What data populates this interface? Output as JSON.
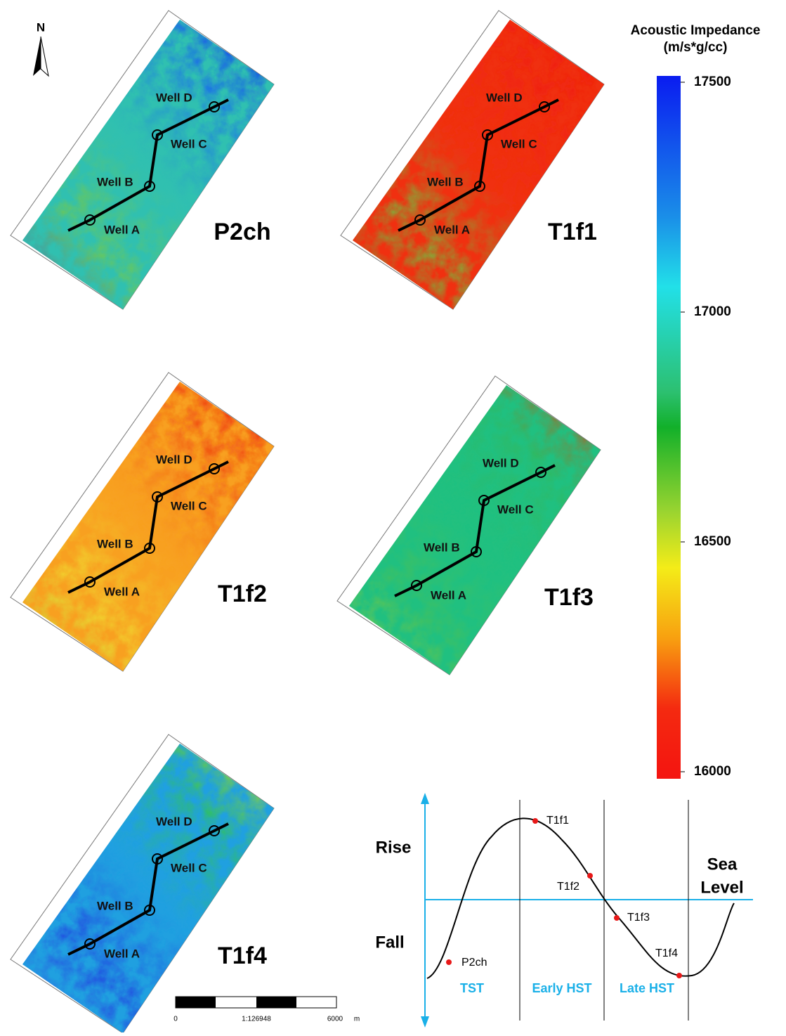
{
  "north": "N",
  "maps": [
    {
      "name": "P2ch",
      "wells": [
        "Well A",
        "Well B",
        "Well C",
        "Well D"
      ]
    },
    {
      "name": "T1f1",
      "wells": [
        "Well A",
        "Well B",
        "Well C",
        "Well D"
      ]
    },
    {
      "name": "T1f2",
      "wells": [
        "Well A",
        "Well B",
        "Well C",
        "Well D"
      ]
    },
    {
      "name": "T1f3",
      "wells": [
        "Well A",
        "Well B",
        "Well C",
        "Well D"
      ]
    },
    {
      "name": "T1f4",
      "wells": [
        "Well A",
        "Well B",
        "Well C",
        "Well D"
      ]
    }
  ],
  "colorbar": {
    "title": [
      "Acoustic Impedance",
      "(m/s*g/cc)"
    ],
    "range": [
      16000,
      17500
    ],
    "ticks": [
      16000,
      16500,
      17000,
      17500
    ]
  },
  "scale_bar": {
    "start": 0,
    "end": 6000,
    "unit": "m",
    "ratio": "1:126948"
  },
  "sea_level": {
    "rise": "Rise",
    "fall": "Fall",
    "title": [
      "Sea",
      "Level"
    ],
    "points": [
      "P2ch",
      "T1f1",
      "T1f2",
      "T1f3",
      "T1f4"
    ],
    "stages": [
      "TST",
      "Early HST",
      "Late HST"
    ]
  }
}
